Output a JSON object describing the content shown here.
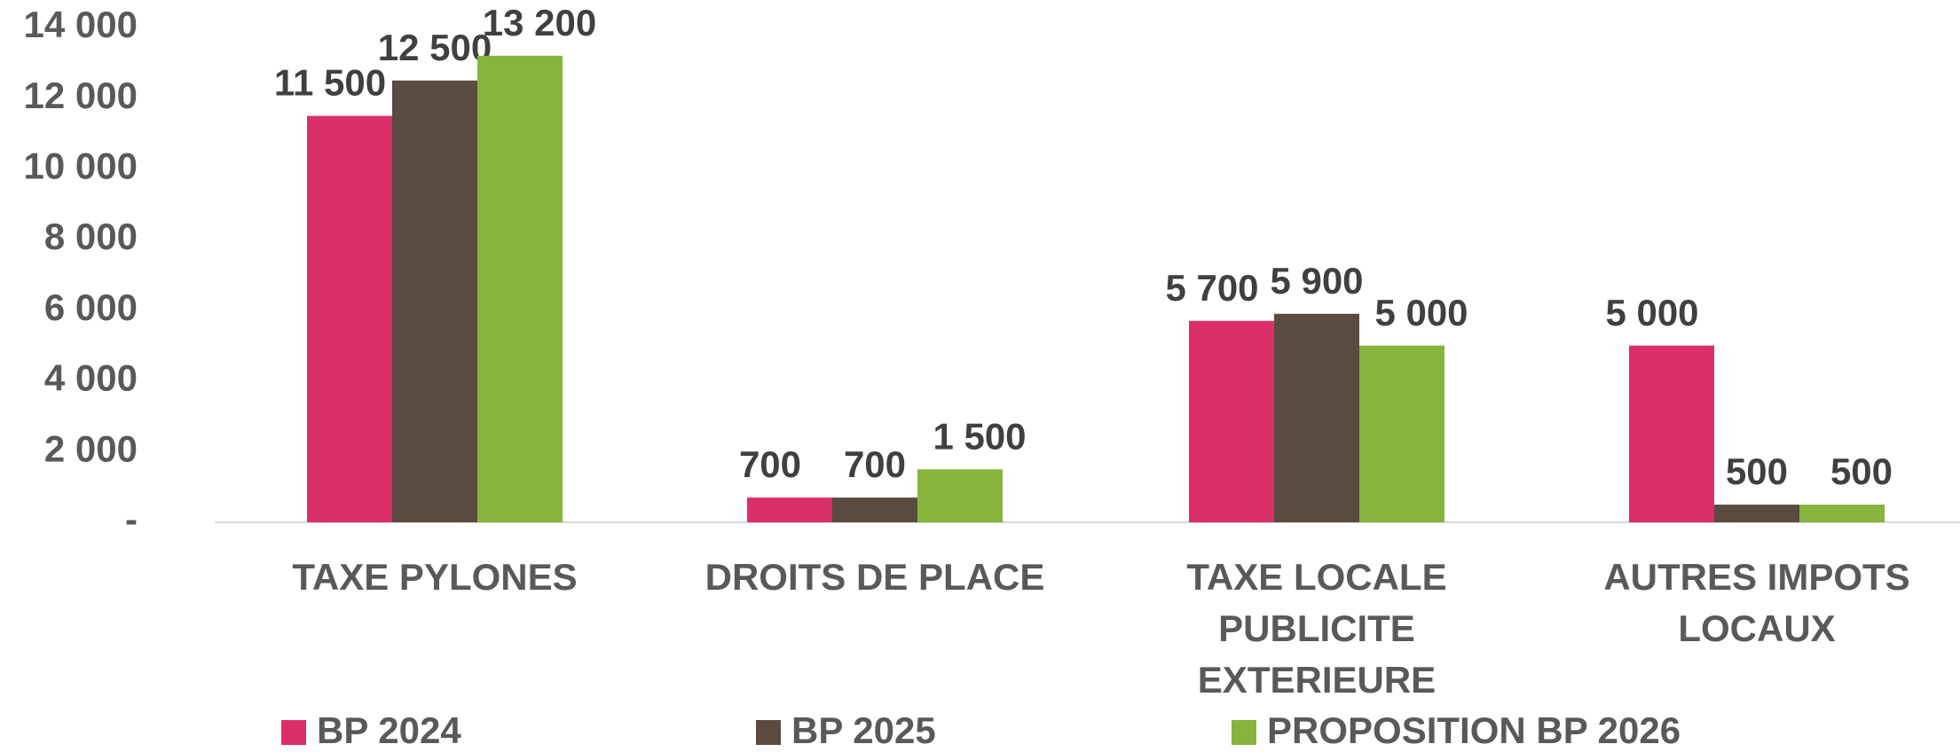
{
  "chart_data": {
    "type": "bar",
    "categories": [
      "TAXE PYLONES",
      "DROITS DE PLACE",
      "TAXE LOCALE\nPUBLICITE EXTERIEURE",
      "AUTRES IMPOTS\nLOCAUX"
    ],
    "series": [
      {
        "name": "BP 2024",
        "color": "#dc2e6a",
        "values": [
          11500,
          700,
          5700,
          5000
        ],
        "value_labels": [
          "11 500",
          "700",
          "5 700",
          "5 000"
        ]
      },
      {
        "name": "BP 2025",
        "color": "#5a4a3f",
        "values": [
          12500,
          700,
          5900,
          500
        ],
        "value_labels": [
          "12 500",
          "700",
          "5 900",
          "500"
        ]
      },
      {
        "name": "PROPOSITION BP 2026",
        "color": "#86b43c",
        "values": [
          13200,
          1500,
          5000,
          500
        ],
        "value_labels": [
          "13 200",
          "1 500",
          "5 000",
          "500"
        ]
      }
    ],
    "ylim": [
      0,
      14000
    ],
    "yticks": [
      {
        "value": 0,
        "label": "-"
      },
      {
        "value": 2000,
        "label": "2 000"
      },
      {
        "value": 4000,
        "label": "4 000"
      },
      {
        "value": 6000,
        "label": "6 000"
      },
      {
        "value": 8000,
        "label": "8 000"
      },
      {
        "value": 10000,
        "label": "10 000"
      },
      {
        "value": 12000,
        "label": "12 000"
      },
      {
        "value": 14000,
        "label": "14 000"
      }
    ],
    "legend": "bottom",
    "grid": false
  }
}
